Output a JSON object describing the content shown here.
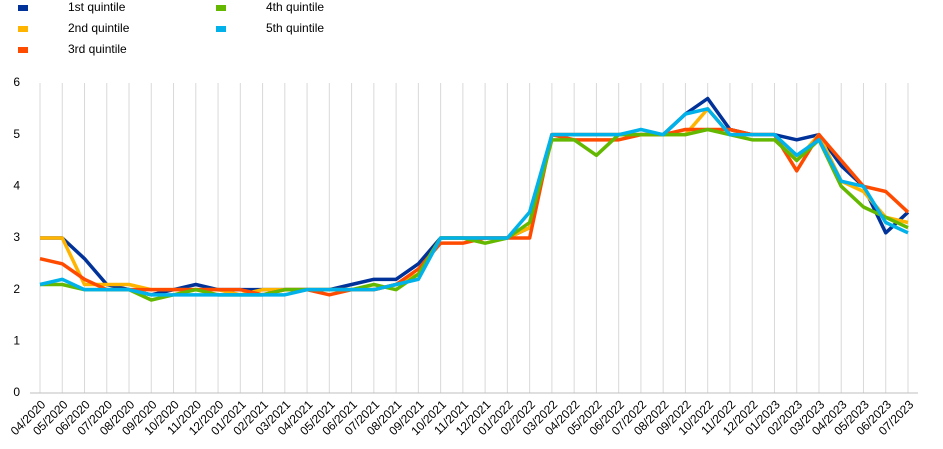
{
  "chart_data": {
    "type": "line",
    "categories": [
      "04/2020",
      "05/2020",
      "06/2020",
      "07/2020",
      "08/2020",
      "09/2020",
      "10/2020",
      "11/2020",
      "12/2020",
      "01/2021",
      "02/2021",
      "03/2021",
      "04/2021",
      "05/2021",
      "06/2021",
      "07/2021",
      "08/2021",
      "09/2021",
      "10/2021",
      "11/2021",
      "12/2021",
      "01/2022",
      "02/2022",
      "03/2022",
      "04/2022",
      "05/2022",
      "06/2022",
      "07/2022",
      "08/2022",
      "09/2022",
      "10/2022",
      "11/2022",
      "12/2022",
      "01/2023",
      "02/2023",
      "03/2023",
      "04/2023",
      "05/2023",
      "06/2023",
      "07/2023"
    ],
    "series": [
      {
        "name": "1st quintile",
        "color": "#003299",
        "values": [
          3.0,
          3.0,
          2.6,
          2.1,
          2.0,
          1.9,
          2.0,
          2.1,
          2.0,
          2.0,
          2.0,
          2.0,
          2.0,
          2.0,
          2.1,
          2.2,
          2.2,
          2.5,
          3.0,
          3.0,
          3.0,
          3.0,
          3.2,
          5.0,
          5.0,
          5.0,
          5.0,
          5.0,
          5.0,
          5.4,
          5.7,
          5.1,
          5.0,
          5.0,
          4.9,
          5.0,
          4.4,
          4.0,
          3.1,
          3.5
        ]
      },
      {
        "name": "2nd quintile",
        "color": "#ffb400",
        "values": [
          3.0,
          3.0,
          2.1,
          2.1,
          2.1,
          2.0,
          2.0,
          2.0,
          2.0,
          1.9,
          2.0,
          2.0,
          2.0,
          2.0,
          2.0,
          2.0,
          2.1,
          2.3,
          3.0,
          3.0,
          3.0,
          3.0,
          3.2,
          5.0,
          5.0,
          5.0,
          5.0,
          5.0,
          5.0,
          5.0,
          5.5,
          5.0,
          5.0,
          5.0,
          4.5,
          5.0,
          4.1,
          3.9,
          3.4,
          3.3
        ]
      },
      {
        "name": "3rd quintile",
        "color": "#ff4b00",
        "values": [
          2.6,
          2.5,
          2.2,
          2.0,
          2.0,
          2.0,
          2.0,
          2.0,
          2.0,
          2.0,
          1.9,
          2.0,
          2.0,
          1.9,
          2.0,
          2.0,
          2.1,
          2.4,
          2.9,
          2.9,
          3.0,
          3.0,
          3.0,
          5.0,
          4.9,
          4.9,
          4.9,
          5.0,
          5.0,
          5.1,
          5.1,
          5.1,
          5.0,
          5.0,
          4.3,
          5.0,
          4.5,
          4.0,
          3.9,
          3.5
        ]
      },
      {
        "name": "4th quintile",
        "color": "#65b800",
        "values": [
          2.1,
          2.1,
          2.0,
          2.0,
          2.0,
          1.8,
          1.9,
          2.0,
          1.9,
          1.9,
          1.9,
          2.0,
          2.0,
          2.0,
          2.0,
          2.1,
          2.0,
          2.3,
          3.0,
          3.0,
          2.9,
          3.0,
          3.3,
          4.9,
          4.9,
          4.6,
          5.0,
          5.0,
          5.0,
          5.0,
          5.1,
          5.0,
          4.9,
          4.9,
          4.5,
          4.9,
          4.0,
          3.6,
          3.4,
          3.2
        ]
      },
      {
        "name": "5th quintile",
        "color": "#00b1ea",
        "values": [
          2.1,
          2.2,
          2.0,
          2.0,
          2.0,
          1.9,
          1.9,
          1.9,
          1.9,
          1.9,
          1.9,
          1.9,
          2.0,
          2.0,
          2.0,
          2.0,
          2.1,
          2.2,
          3.0,
          3.0,
          3.0,
          3.0,
          3.5,
          5.0,
          5.0,
          5.0,
          5.0,
          5.1,
          5.0,
          5.4,
          5.5,
          5.0,
          5.0,
          5.0,
          4.6,
          4.9,
          4.1,
          4.0,
          3.3,
          3.1
        ]
      }
    ],
    "ylim": [
      0,
      6
    ],
    "yticks": [
      0,
      1,
      2,
      3,
      4,
      5,
      6
    ],
    "grid": true
  }
}
